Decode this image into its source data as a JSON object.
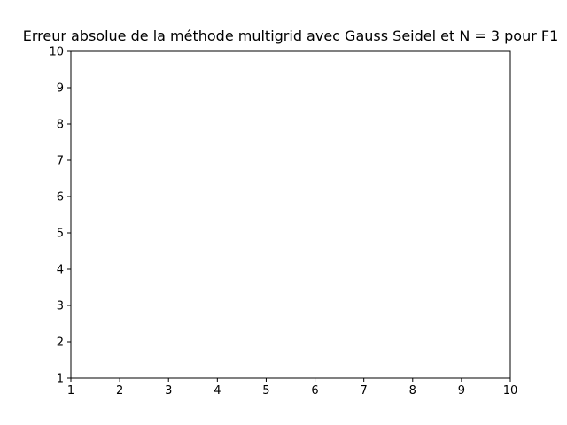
{
  "chart_data": {
    "type": "line",
    "title": "Erreur absolue de la méthode multigrid avec Gauss Seidel et N = 3 pour F1",
    "xlabel": "",
    "ylabel": "",
    "xlim": [
      1,
      10
    ],
    "ylim": [
      1,
      10
    ],
    "xticks": [
      "1",
      "2",
      "3",
      "4",
      "5",
      "6",
      "7",
      "8",
      "9",
      "10"
    ],
    "yticks": [
      "1",
      "2",
      "3",
      "4",
      "5",
      "6",
      "7",
      "8",
      "9",
      "10"
    ],
    "series": [],
    "grid": false,
    "legend": "none"
  }
}
